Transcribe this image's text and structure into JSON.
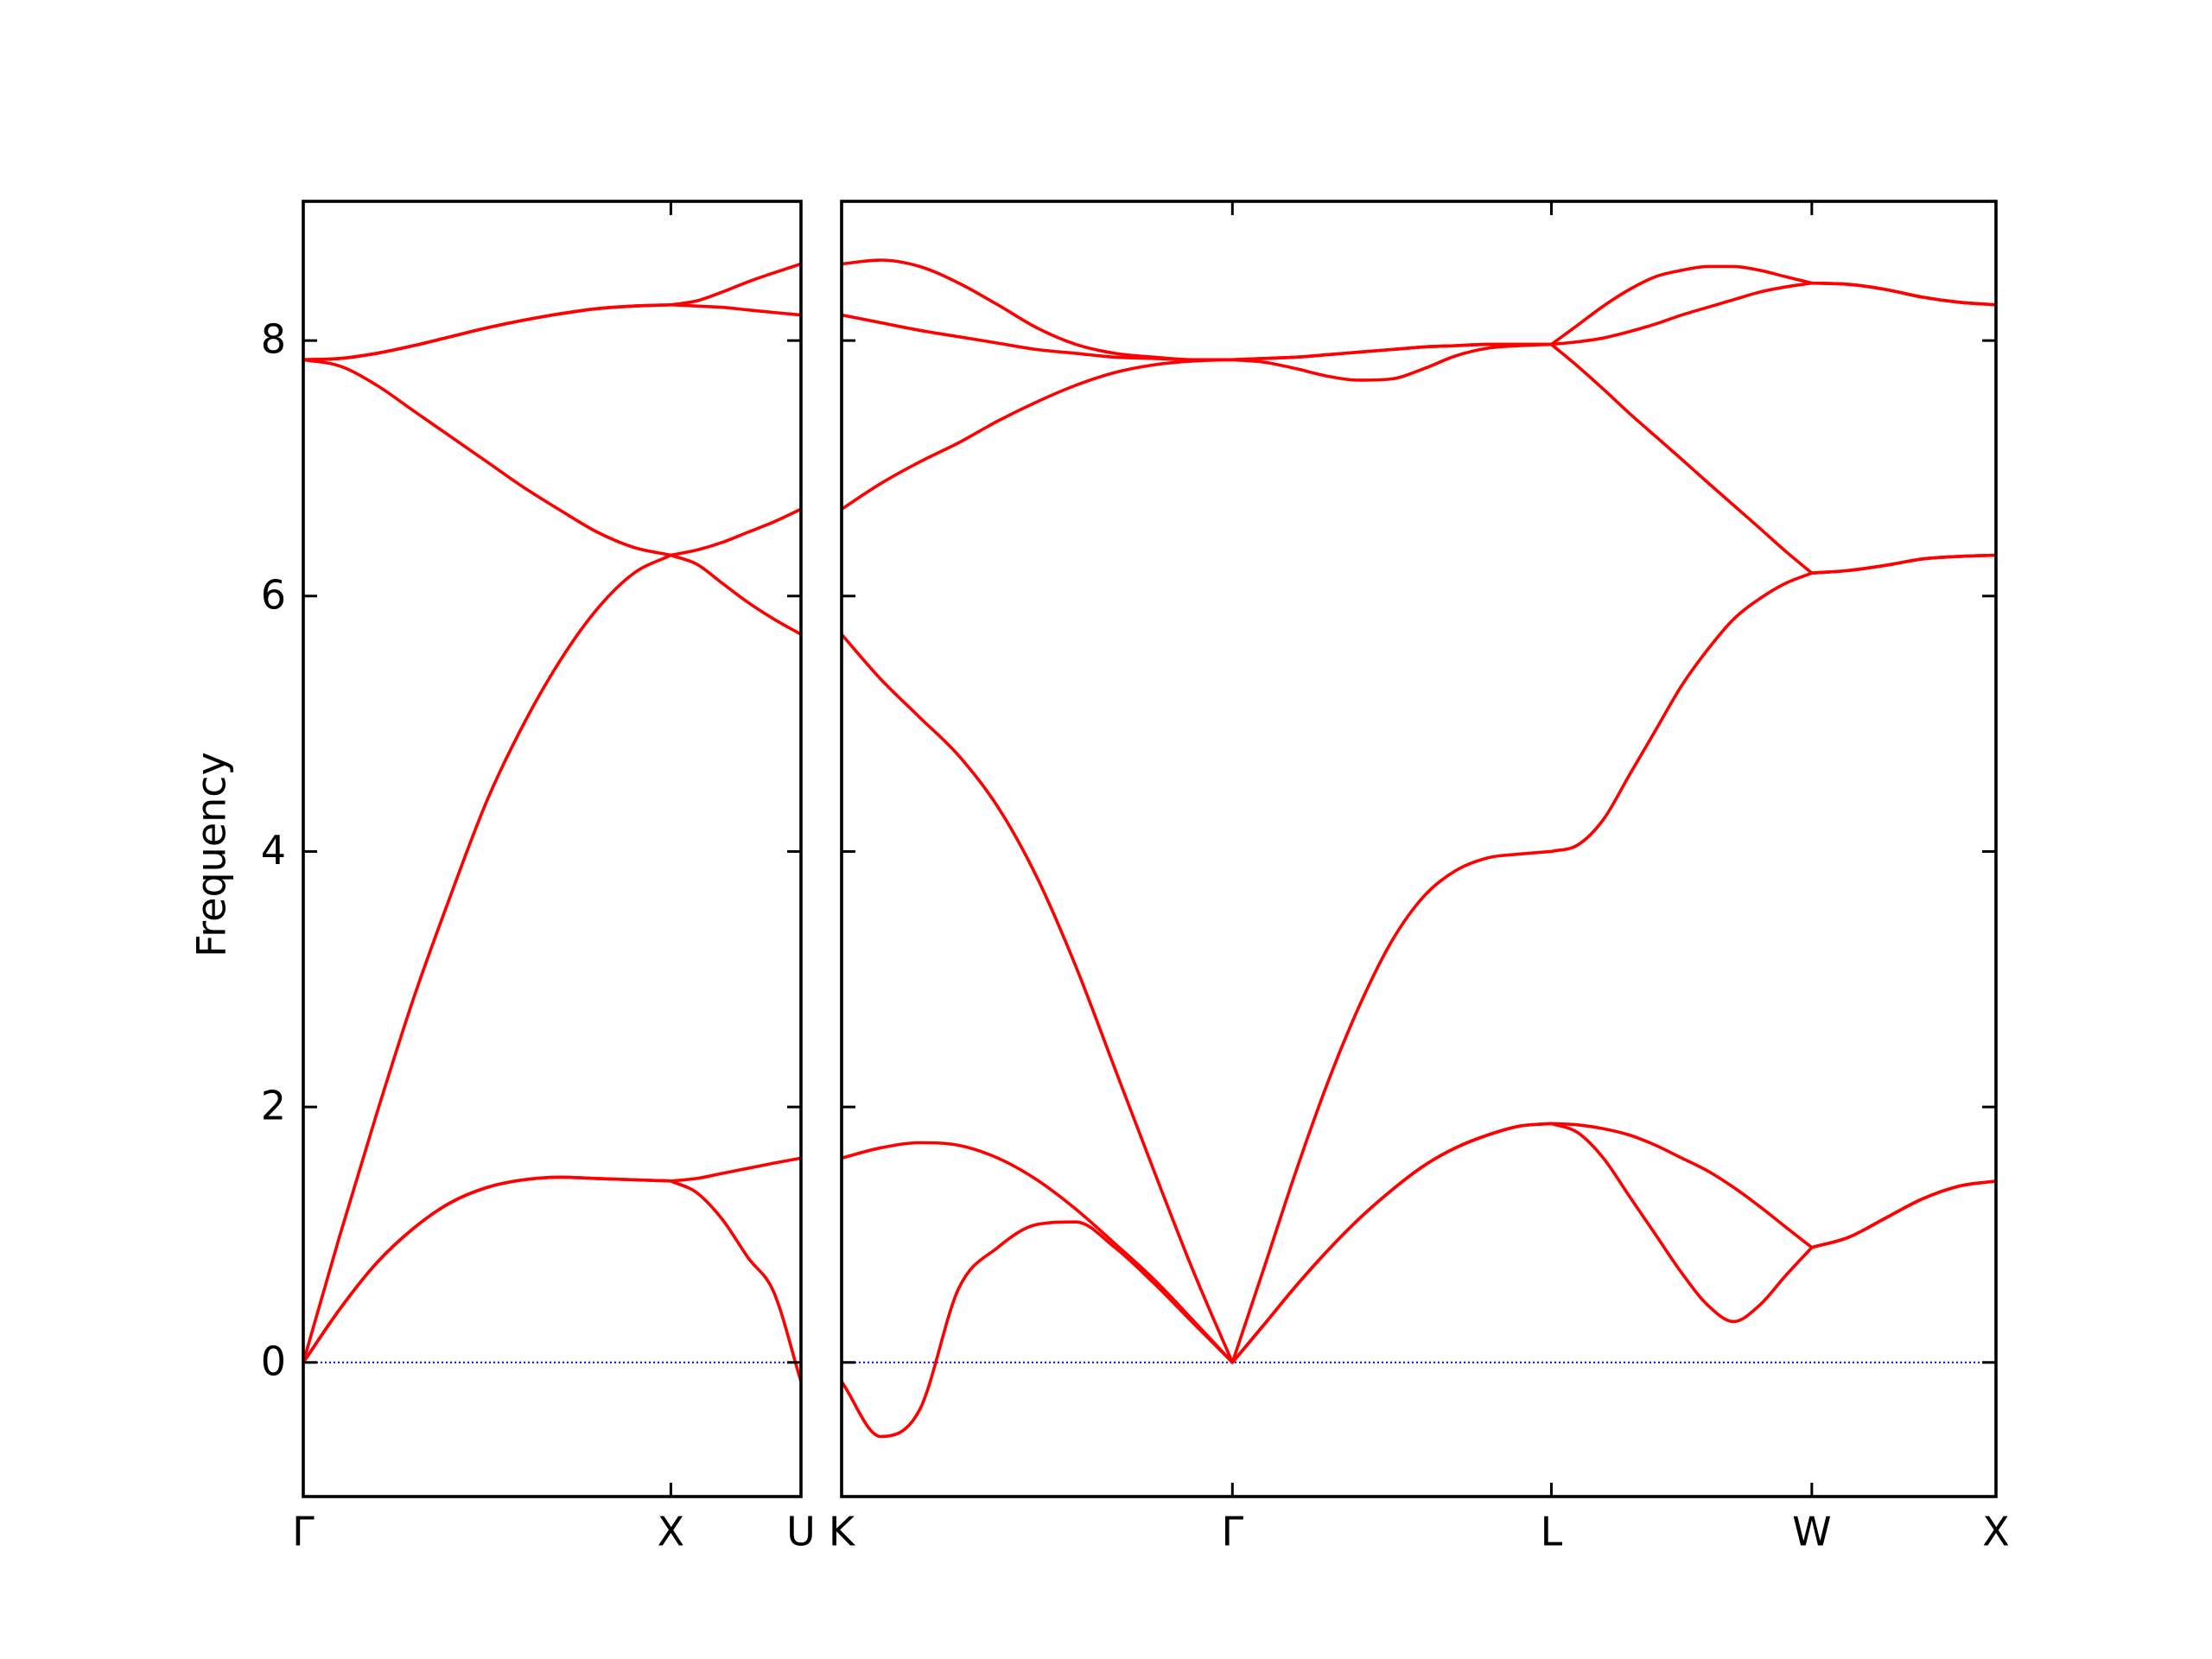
{
  "chart_data": [
    {
      "type": "line",
      "ylabel": "Frequency",
      "x": [
        0,
        0.1,
        0.2,
        0.3,
        0.4,
        0.5,
        0.6,
        0.7,
        0.8,
        0.9,
        1,
        1.07,
        1.14,
        1.21,
        1.28,
        1.354
      ],
      "xlim": [
        0,
        1.354
      ],
      "xticks": [
        {
          "value": 0,
          "label": "Γ"
        },
        {
          "value": 1,
          "label": "X"
        },
        {
          "value": 1.354,
          "label": "U"
        }
      ],
      "ylim": [
        -1.05,
        9.09
      ],
      "yticks": [
        0,
        2,
        4,
        6,
        8
      ],
      "hlines": [
        0
      ],
      "hline_color": "#0000ff",
      "series": [
        {
          "color": "#ff0000",
          "values": [
            0,
            0.42,
            0.78,
            1.05,
            1.25,
            1.37,
            1.43,
            1.45,
            1.44,
            1.43,
            1.42,
            1.33,
            1.12,
            0.82,
            0.55,
            -0.15
          ]
        },
        {
          "color": "#ff0000",
          "values": [
            0,
            0.42,
            0.78,
            1.05,
            1.25,
            1.37,
            1.43,
            1.45,
            1.44,
            1.43,
            1.42,
            1.44,
            1.48,
            1.52,
            1.56,
            1.6
          ]
        },
        {
          "color": "#ff0000",
          "values": [
            0,
            1.0,
            1.95,
            2.85,
            3.65,
            4.4,
            5.0,
            5.5,
            5.9,
            6.18,
            6.32,
            6.25,
            6.1,
            5.95,
            5.82,
            5.7
          ]
        },
        {
          "color": "#ff0000",
          "values": [
            7.85,
            7.8,
            7.65,
            7.45,
            7.25,
            7.05,
            6.85,
            6.67,
            6.5,
            6.38,
            6.32,
            6.36,
            6.42,
            6.5,
            6.58,
            6.68
          ]
        },
        {
          "color": "#ff0000",
          "values": [
            7.85,
            7.86,
            7.9,
            7.96,
            8.03,
            8.1,
            8.16,
            8.21,
            8.25,
            8.27,
            8.28,
            8.27,
            8.26,
            8.24,
            8.22,
            8.2
          ]
        },
        {
          "color": "#ff0000",
          "values": [
            7.85,
            7.86,
            7.9,
            7.96,
            8.03,
            8.1,
            8.16,
            8.21,
            8.25,
            8.27,
            8.28,
            8.31,
            8.38,
            8.46,
            8.53,
            8.6
          ]
        }
      ]
    },
    {
      "type": "line",
      "sharey": true,
      "x": [
        1.354,
        1.46,
        1.566,
        1.672,
        1.778,
        1.884,
        1.99,
        2.096,
        2.202,
        2.308,
        2.415,
        2.502,
        2.588,
        2.675,
        2.761,
        2.848,
        2.935,
        3.021,
        3.108,
        3.194,
        3.281,
        3.352,
        3.422,
        3.493,
        3.564,
        3.635,
        3.705,
        3.776,
        3.847,
        3.917,
        3.988,
        4.088,
        4.188,
        4.288,
        4.388,
        4.488
      ],
      "xlim": [
        1.354,
        4.488
      ],
      "xticks": [
        {
          "value": 1.354,
          "label": "K"
        },
        {
          "value": 2.415,
          "label": "Γ"
        },
        {
          "value": 3.281,
          "label": "L"
        },
        {
          "value": 3.988,
          "label": "W"
        },
        {
          "value": 4.488,
          "label": "X"
        }
      ],
      "hlines": [
        0
      ],
      "hline_color": "#0000ff",
      "series": [
        {
          "color": "#ff0000",
          "values": [
            -0.15,
            -0.58,
            -0.37,
            0.58,
            0.9,
            1.08,
            1.1,
            0.9,
            0.62,
            0.31,
            0,
            0.3,
            0.6,
            0.88,
            1.13,
            1.35,
            1.54,
            1.68,
            1.78,
            1.85,
            1.87,
            1.8,
            1.6,
            1.3,
            1.0,
            0.7,
            0.45,
            0.32,
            0.45,
            0.68,
            0.9,
            0.98,
            1.13,
            1.28,
            1.38,
            1.42
          ]
        },
        {
          "color": "#ff0000",
          "values": [
            1.6,
            1.68,
            1.72,
            1.7,
            1.6,
            1.43,
            1.2,
            0.93,
            0.65,
            0.33,
            0,
            0.3,
            0.6,
            0.88,
            1.13,
            1.35,
            1.54,
            1.68,
            1.78,
            1.85,
            1.87,
            1.86,
            1.83,
            1.78,
            1.7,
            1.6,
            1.5,
            1.37,
            1.22,
            1.06,
            0.9,
            0.98,
            1.13,
            1.28,
            1.38,
            1.42
          ]
        },
        {
          "color": "#ff0000",
          "values": [
            5.7,
            5.35,
            5.05,
            4.75,
            4.35,
            3.8,
            3.1,
            2.3,
            1.5,
            0.72,
            0,
            0.75,
            1.5,
            2.2,
            2.8,
            3.3,
            3.65,
            3.85,
            3.95,
            3.98,
            4.0,
            4.05,
            4.25,
            4.6,
            4.95,
            5.3,
            5.58,
            5.82,
            5.98,
            6.1,
            6.18,
            6.2,
            6.24,
            6.29,
            6.31,
            6.32
          ]
        },
        {
          "color": "#ff0000",
          "values": [
            6.68,
            6.88,
            7.05,
            7.2,
            7.37,
            7.52,
            7.65,
            7.75,
            7.81,
            7.84,
            7.85,
            7.83,
            7.78,
            7.72,
            7.69,
            7.7,
            7.78,
            7.88,
            7.94,
            7.96,
            7.97,
            7.8,
            7.62,
            7.43,
            7.25,
            7.07,
            6.89,
            6.71,
            6.53,
            6.35,
            6.18,
            6.2,
            6.24,
            6.29,
            6.31,
            6.32
          ]
        },
        {
          "color": "#ff0000",
          "values": [
            8.2,
            8.14,
            8.08,
            8.03,
            7.98,
            7.93,
            7.9,
            7.87,
            7.86,
            7.85,
            7.85,
            7.86,
            7.87,
            7.89,
            7.91,
            7.93,
            7.95,
            7.96,
            7.97,
            7.97,
            7.97,
            7.99,
            8.02,
            8.07,
            8.13,
            8.2,
            8.26,
            8.32,
            8.38,
            8.42,
            8.45,
            8.44,
            8.4,
            8.34,
            8.3,
            8.28
          ]
        },
        {
          "color": "#ff0000",
          "values": [
            8.6,
            8.63,
            8.58,
            8.45,
            8.28,
            8.1,
            7.97,
            7.9,
            7.87,
            7.85,
            7.85,
            7.86,
            7.87,
            7.89,
            7.91,
            7.93,
            7.95,
            7.96,
            7.97,
            7.97,
            7.97,
            8.12,
            8.27,
            8.4,
            8.5,
            8.55,
            8.58,
            8.58,
            8.55,
            8.5,
            8.45,
            8.44,
            8.4,
            8.34,
            8.3,
            8.28
          ]
        }
      ]
    }
  ]
}
